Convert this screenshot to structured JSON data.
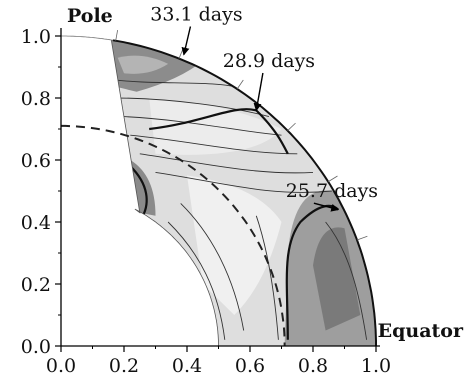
{
  "chart_data": {
    "type": "contour",
    "title": "",
    "xlabel": "",
    "ylabel": "",
    "xlim": [
      0.0,
      1.0
    ],
    "ylim": [
      0.0,
      1.0
    ],
    "x_ticks": [
      "0.0",
      "0.2",
      "0.4",
      "0.6",
      "0.8",
      "1.0"
    ],
    "y_ticks": [
      "0.0",
      "0.2",
      "0.4",
      "0.6",
      "0.8",
      "1.0"
    ],
    "x_tick_values": [
      0.0,
      0.2,
      0.4,
      0.6,
      0.8,
      1.0
    ],
    "y_tick_values": [
      0.0,
      0.2,
      0.4,
      0.6,
      0.8,
      1.0
    ],
    "grid": false,
    "corner_labels": {
      "pole": "Pole",
      "equator": "Equator"
    },
    "inner_radius": 0.5,
    "outer_radius": 1.0,
    "tachocline_radius": 0.71,
    "domain_colatitude_deg": [
      0,
      75
    ],
    "annotations": [
      {
        "text": "33.1 days",
        "label_x": 0.43,
        "label_y": 1.05,
        "arrow_to": [
          0.39,
          0.94
        ]
      },
      {
        "text": "28.9 days",
        "label_x": 0.66,
        "label_y": 0.9,
        "arrow_to": [
          0.62,
          0.76
        ]
      },
      {
        "text": "25.7 days",
        "label_x": 0.86,
        "label_y": 0.48,
        "arrow_to": [
          0.88,
          0.44
        ]
      }
    ]
  }
}
